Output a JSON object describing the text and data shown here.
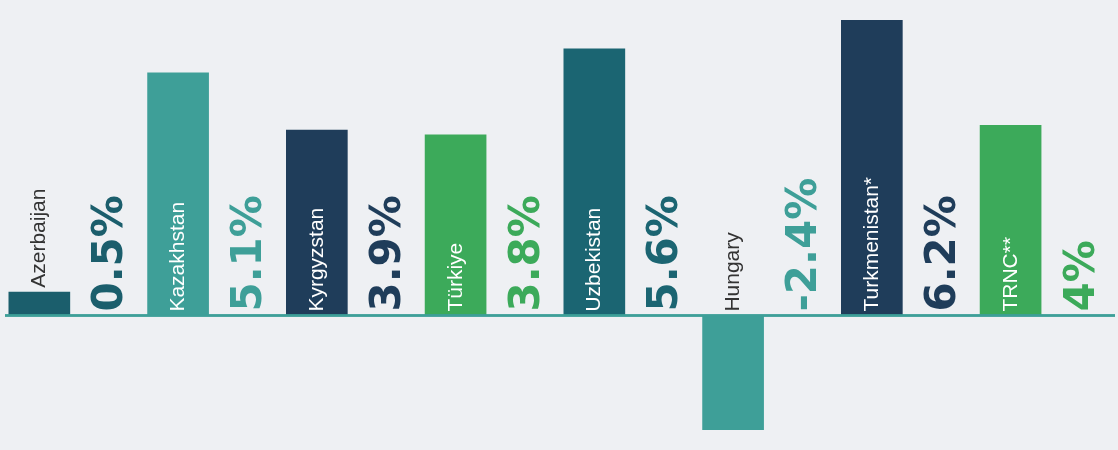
{
  "chart_data": {
    "type": "bar",
    "categories": [
      "Azerbaijan",
      "Kazakhstan",
      "Kyrgyzstan",
      "Türkiye",
      "Uzbekistan",
      "Hungary",
      "Turkmenistan*",
      "TRNC**"
    ],
    "values": [
      0.5,
      5.1,
      3.9,
      3.8,
      5.6,
      -2.4,
      6.2,
      4
    ],
    "colors": [
      "#1b5e6c",
      "#3e9f98",
      "#1f3d5a",
      "#3caa5a",
      "#1b6572",
      "#3e9f98",
      "#1f3d5a",
      "#3caa5a"
    ],
    "value_labels": [
      "0.5%",
      "5.1%",
      "3.9%",
      "3.8%",
      "5.6%",
      "-2.4%",
      "6.2%",
      "4%"
    ]
  }
}
